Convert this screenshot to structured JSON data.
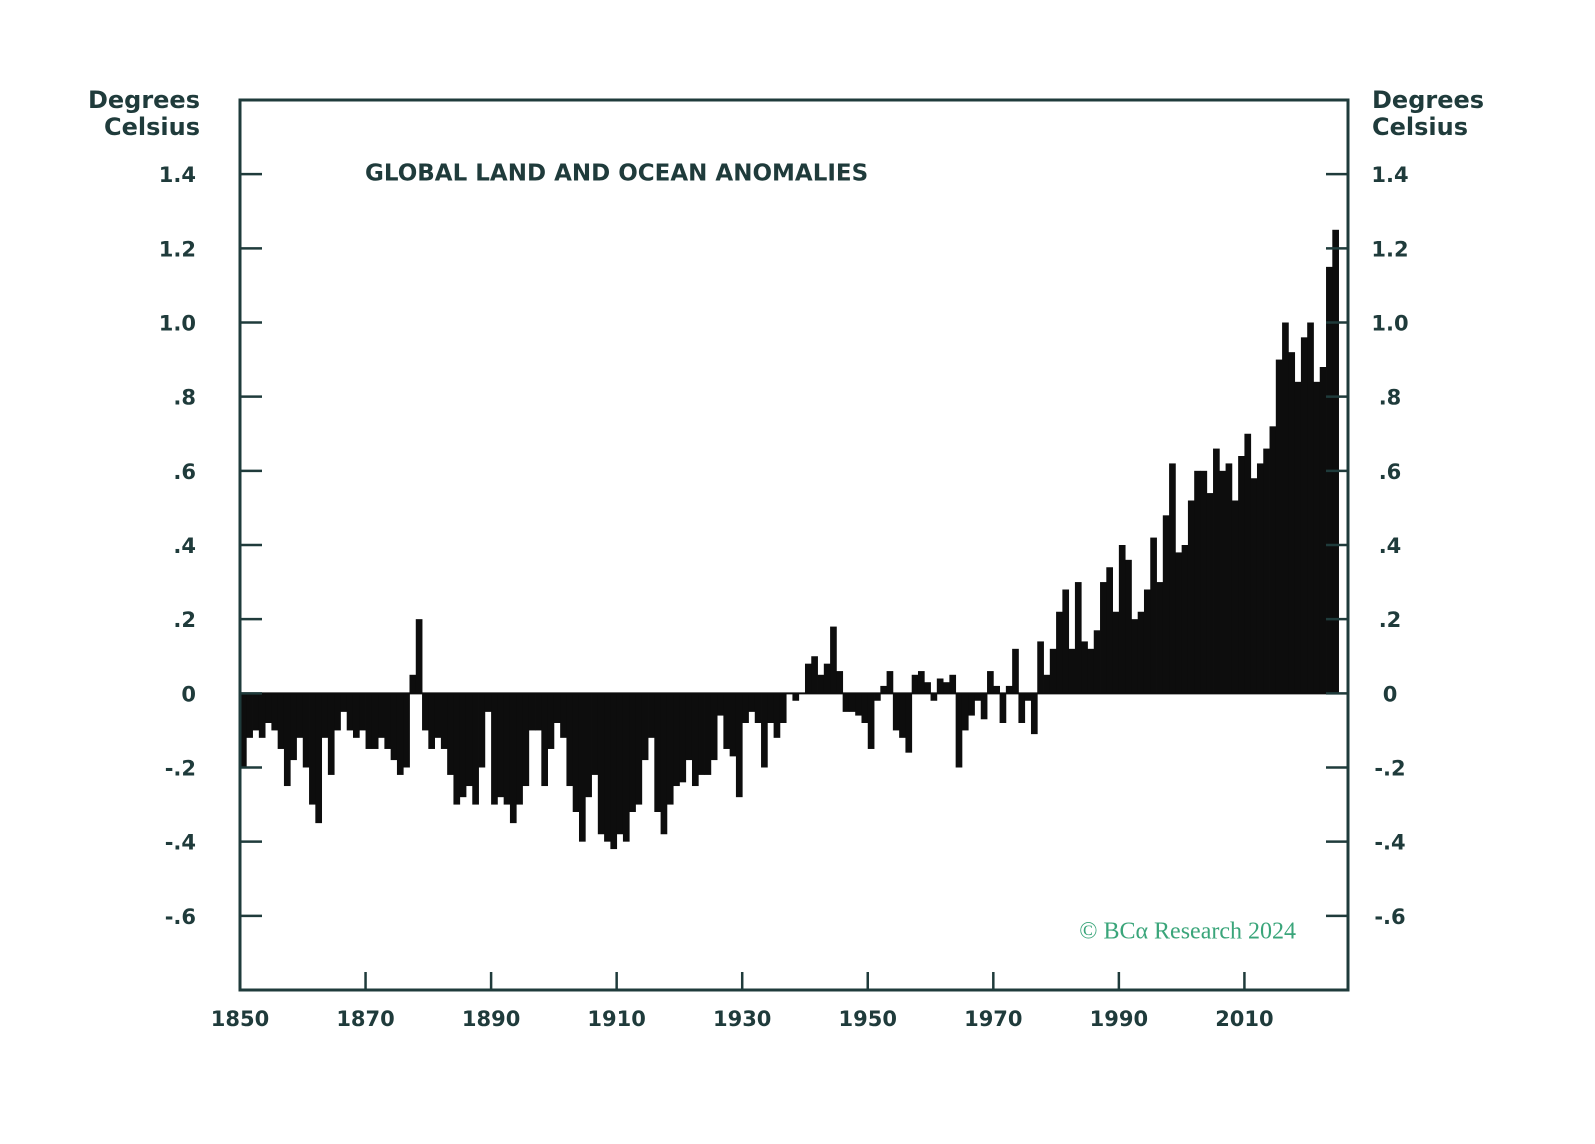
{
  "chart_data": {
    "type": "bar",
    "title": "GLOBAL LAND AND OCEAN ANOMALIES",
    "ylabel": [
      "Degrees",
      "Celsius"
    ],
    "y2label": [
      "Degrees",
      "Celsius"
    ],
    "annotation": "© BCα Research 2024",
    "color": "#0d0d0d",
    "xlim": [
      1850,
      2026.5
    ],
    "xticks": [
      1850,
      1870,
      1890,
      1910,
      1930,
      1950,
      1970,
      1990,
      2010
    ],
    "ylim": [
      -0.8,
      1.6
    ],
    "yticks": [
      {
        "value": -0.6,
        "label": "-.6"
      },
      {
        "value": -0.4,
        "label": "-.4"
      },
      {
        "value": -0.2,
        "label": "-.2"
      },
      0,
      {
        "value": 0.2,
        "label": ".2"
      },
      {
        "value": 0.4,
        "label": ".4"
      },
      {
        "value": 0.6,
        "label": ".6"
      },
      {
        "value": 0.8,
        "label": ".8"
      },
      {
        "value": 1,
        "label": "1.0"
      },
      {
        "value": 1.2,
        "label": "1.2"
      },
      {
        "value": 1.4,
        "label": "1.4"
      }
    ],
    "y2lim": [
      -0.8,
      1.6
    ],
    "y2ticks": [
      {
        "value": -0.6,
        "label": "-.6"
      },
      {
        "value": -0.4,
        "label": "-.4"
      },
      {
        "value": -0.2,
        "label": "-.2"
      },
      0,
      {
        "value": 0.2,
        "label": ".2"
      },
      {
        "value": 0.4,
        "label": ".4"
      },
      {
        "value": 0.6,
        "label": ".6"
      },
      {
        "value": 0.8,
        "label": ".8"
      },
      {
        "value": 1,
        "label": "1.0"
      },
      {
        "value": 1.2,
        "label": "1.2"
      },
      {
        "value": 1.4,
        "label": "1.4"
      }
    ],
    "x": [
      1850,
      1851,
      1852,
      1853,
      1854,
      1855,
      1856,
      1857,
      1858,
      1859,
      1860,
      1861,
      1862,
      1863,
      1864,
      1865,
      1866,
      1867,
      1868,
      1869,
      1870,
      1871,
      1872,
      1873,
      1874,
      1875,
      1876,
      1877,
      1878,
      1879,
      1880,
      1881,
      1882,
      1883,
      1884,
      1885,
      1886,
      1887,
      1888,
      1889,
      1890,
      1891,
      1892,
      1893,
      1894,
      1895,
      1896,
      1897,
      1898,
      1899,
      1900,
      1901,
      1902,
      1903,
      1904,
      1905,
      1906,
      1907,
      1908,
      1909,
      1910,
      1911,
      1912,
      1913,
      1914,
      1915,
      1916,
      1917,
      1918,
      1919,
      1920,
      1921,
      1922,
      1923,
      1924,
      1925,
      1926,
      1927,
      1928,
      1929,
      1930,
      1931,
      1932,
      1933,
      1934,
      1935,
      1936,
      1937,
      1938,
      1939,
      1940,
      1941,
      1942,
      1943,
      1944,
      1945,
      1946,
      1947,
      1948,
      1949,
      1950,
      1951,
      1952,
      1953,
      1954,
      1955,
      1956,
      1957,
      1958,
      1959,
      1960,
      1961,
      1962,
      1963,
      1964,
      1965,
      1966,
      1967,
      1968,
      1969,
      1970,
      1971,
      1972,
      1973,
      1974,
      1975,
      1976,
      1977,
      1978,
      1979,
      1980,
      1981,
      1982,
      1983,
      1984,
      1985,
      1986,
      1987,
      1988,
      1989,
      1990,
      1991,
      1992,
      1993,
      1994,
      1995,
      1996,
      1997,
      1998,
      1999,
      2000,
      2001,
      2002,
      2003,
      2004,
      2005,
      2006,
      2007,
      2008,
      2009,
      2010,
      2011,
      2012,
      2013,
      2014,
      2015,
      2016,
      2017,
      2018,
      2019,
      2020,
      2021,
      2022,
      2023,
      2024
    ],
    "values": [
      -0.2,
      -0.12,
      -0.1,
      -0.12,
      -0.08,
      -0.1,
      -0.15,
      -0.25,
      -0.18,
      -0.12,
      -0.2,
      -0.3,
      -0.35,
      -0.12,
      -0.22,
      -0.1,
      -0.05,
      -0.1,
      -0.12,
      -0.1,
      -0.15,
      -0.15,
      -0.12,
      -0.15,
      -0.18,
      -0.22,
      -0.2,
      0.05,
      0.2,
      -0.1,
      -0.15,
      -0.12,
      -0.15,
      -0.22,
      -0.3,
      -0.28,
      -0.25,
      -0.3,
      -0.2,
      -0.05,
      -0.3,
      -0.28,
      -0.3,
      -0.35,
      -0.3,
      -0.25,
      -0.1,
      -0.1,
      -0.25,
      -0.15,
      -0.08,
      -0.12,
      -0.25,
      -0.32,
      -0.4,
      -0.28,
      -0.22,
      -0.38,
      -0.4,
      -0.42,
      -0.38,
      -0.4,
      -0.32,
      -0.3,
      -0.18,
      -0.12,
      -0.32,
      -0.38,
      -0.3,
      -0.25,
      -0.24,
      -0.18,
      -0.25,
      -0.22,
      -0.22,
      -0.18,
      -0.06,
      -0.15,
      -0.17,
      -0.28,
      -0.08,
      -0.05,
      -0.08,
      -0.2,
      -0.08,
      -0.12,
      -0.08,
      0.0,
      -0.02,
      0.0,
      0.08,
      0.1,
      0.05,
      0.08,
      0.18,
      0.06,
      -0.05,
      -0.05,
      -0.06,
      -0.08,
      -0.15,
      -0.02,
      0.02,
      0.06,
      -0.1,
      -0.12,
      -0.16,
      0.05,
      0.06,
      0.03,
      -0.02,
      0.04,
      0.03,
      0.05,
      -0.2,
      -0.1,
      -0.06,
      -0.02,
      -0.07,
      0.06,
      0.02,
      -0.08,
      0.02,
      0.12,
      -0.08,
      -0.02,
      -0.11,
      0.14,
      0.05,
      0.12,
      0.22,
      0.28,
      0.12,
      0.3,
      0.14,
      0.12,
      0.17,
      0.3,
      0.34,
      0.22,
      0.4,
      0.36,
      0.2,
      0.22,
      0.28,
      0.42,
      0.3,
      0.48,
      0.62,
      0.38,
      0.4,
      0.52,
      0.6,
      0.6,
      0.54,
      0.66,
      0.6,
      0.62,
      0.52,
      0.64,
      0.7,
      0.58,
      0.62,
      0.66,
      0.72,
      0.9,
      1.0,
      0.92,
      0.84,
      0.96,
      1.0,
      0.84,
      0.88,
      1.15,
      1.25
    ]
  }
}
